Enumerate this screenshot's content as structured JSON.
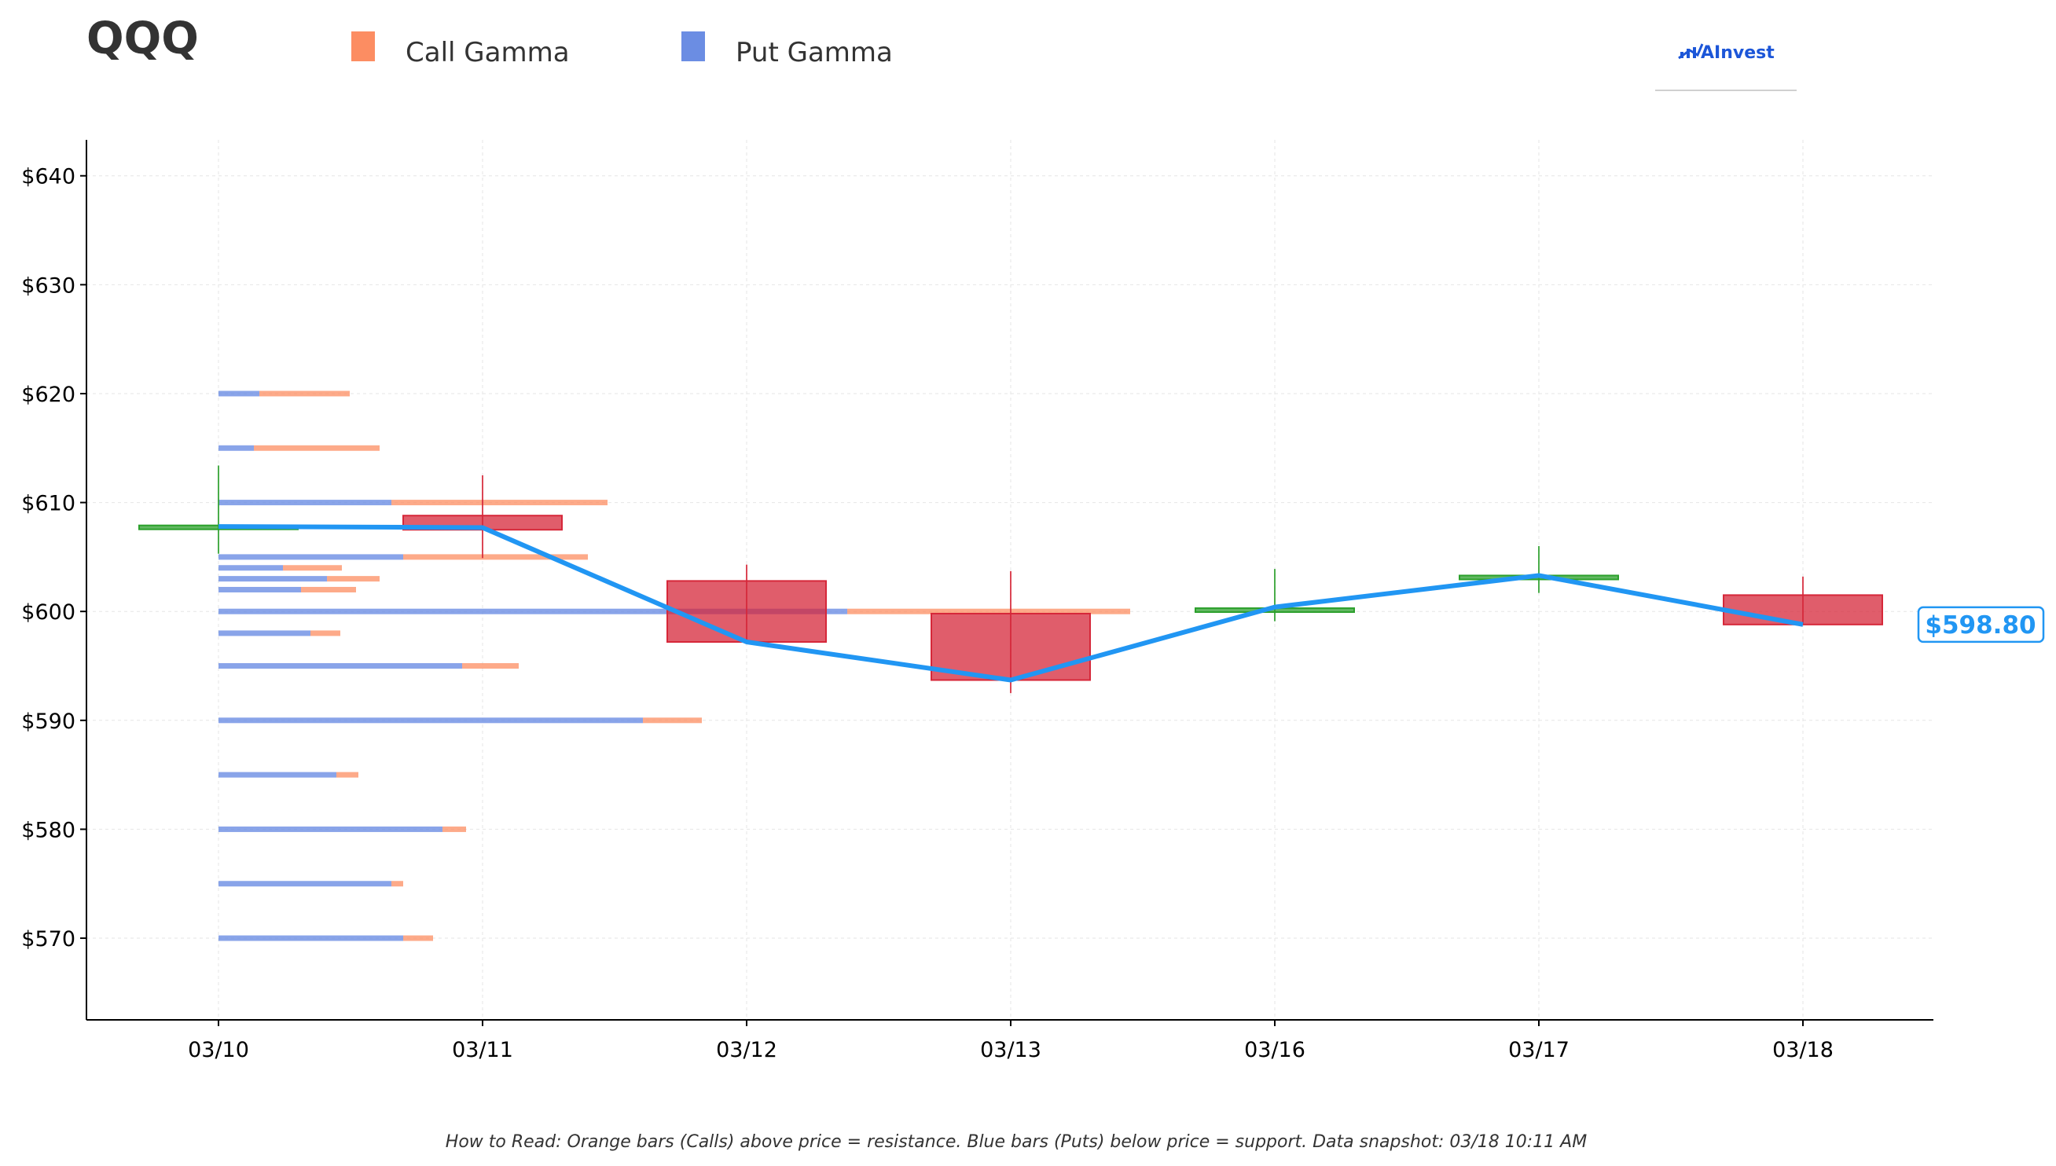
{
  "header": {
    "ticker": "QQQ",
    "logo_text": "AInvest"
  },
  "legend": [
    {
      "label": "Call Gamma",
      "color": "#fc8d62"
    },
    {
      "label": "Put Gamma",
      "color": "#6b8de3"
    }
  ],
  "footnote": "How to Read: Orange bars (Calls) above price = resistance. Blue bars (Puts) below price = support. Data snapshot: 03/18 10:11 AM",
  "current_price_label": "$598.80",
  "colors": {
    "up": "#2ca02c",
    "down": "#d62739",
    "line": "#2196f3",
    "call": "#fc8d62",
    "put": "#6b8de3",
    "logo": "#1c56d8"
  },
  "chart_data": {
    "type": "candlestick",
    "title": "QQQ",
    "x": [
      "03/10",
      "03/11",
      "03/12",
      "03/13",
      "03/16",
      "03/17",
      "03/18"
    ],
    "ylim": [
      562.5,
      643.3
    ],
    "yticks": [
      570,
      580,
      590,
      600,
      610,
      620,
      630,
      640
    ],
    "ytick_labels": [
      "$570",
      "$580",
      "$590",
      "$600",
      "$610",
      "$620",
      "$630",
      "$640"
    ],
    "grid": true,
    "legend_position": "top-left",
    "candles": [
      {
        "date": "03/10",
        "open": 607.9,
        "high": 613.4,
        "low": 605.3,
        "close": 607.9
      },
      {
        "date": "03/11",
        "open": 608.8,
        "high": 612.5,
        "low": 604.9,
        "close": 607.5
      },
      {
        "date": "03/12",
        "open": 602.8,
        "high": 604.3,
        "low": 597.1,
        "close": 597.2
      },
      {
        "date": "03/13",
        "open": 599.8,
        "high": 603.7,
        "low": 592.5,
        "close": 593.7
      },
      {
        "date": "03/16",
        "open": 600.1,
        "high": 603.9,
        "low": 599.1,
        "close": 600.3
      },
      {
        "date": "03/17",
        "open": 603.1,
        "high": 606.0,
        "low": 601.7,
        "close": 603.3
      },
      {
        "date": "03/18",
        "open": 601.5,
        "high": 603.2,
        "low": 598.8,
        "close": 598.8
      }
    ],
    "line": [
      {
        "date": "03/10",
        "value": 607.8
      },
      {
        "date": "03/11",
        "value": 607.7
      },
      {
        "date": "03/12",
        "value": 597.2
      },
      {
        "date": "03/13",
        "value": 593.7
      },
      {
        "date": "03/16",
        "value": 600.4
      },
      {
        "date": "03/17",
        "value": 603.3
      },
      {
        "date": "03/18",
        "value": 598.8
      }
    ],
    "current_price": 598.8,
    "gamma_strikes": [
      {
        "strike": 620,
        "put": 0.52,
        "call": 1.15
      },
      {
        "strike": 615,
        "put": 0.45,
        "call": 1.6
      },
      {
        "strike": 610,
        "put": 2.2,
        "call": 2.75
      },
      {
        "strike": 605,
        "put": 2.35,
        "call": 2.35
      },
      {
        "strike": 604,
        "put": 0.82,
        "call": 0.75
      },
      {
        "strike": 603,
        "put": 1.38,
        "call": 0.67
      },
      {
        "strike": 602,
        "put": 1.05,
        "call": 0.7
      },
      {
        "strike": 600,
        "put": 8.0,
        "call": 3.6
      },
      {
        "strike": 598,
        "put": 1.17,
        "call": 0.38
      },
      {
        "strike": 595,
        "put": 3.1,
        "call": 0.72
      },
      {
        "strike": 590,
        "put": 5.4,
        "call": 0.75
      },
      {
        "strike": 585,
        "put": 1.5,
        "call": 0.28
      },
      {
        "strike": 580,
        "put": 2.85,
        "call": 0.3
      },
      {
        "strike": 575,
        "put": 2.2,
        "call": 0.15
      },
      {
        "strike": 570,
        "put": 2.35,
        "call": 0.38
      }
    ]
  }
}
